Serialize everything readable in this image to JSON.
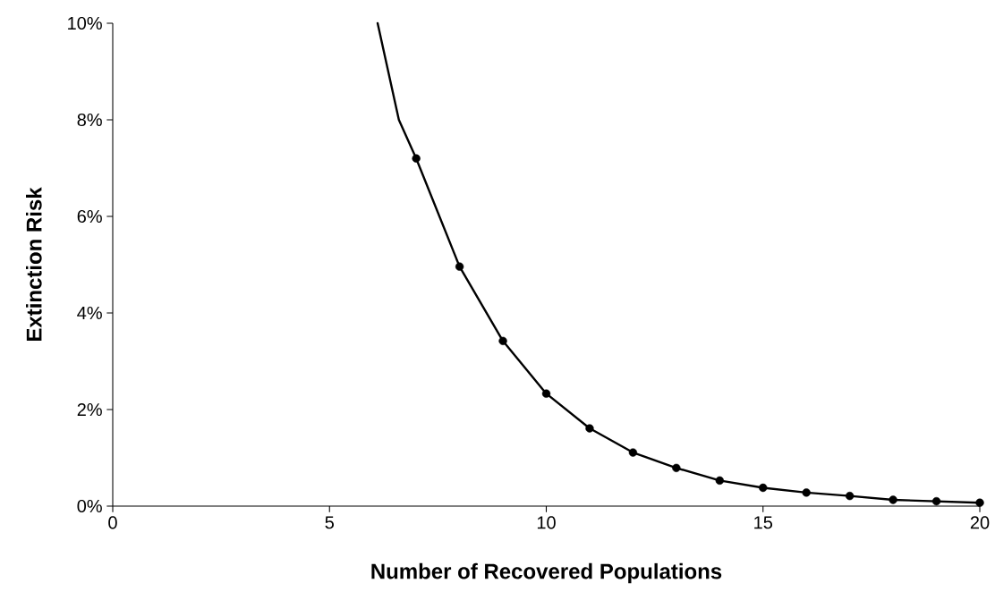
{
  "chart_data": {
    "type": "line",
    "xlabel": "Number of Recovered Populations",
    "ylabel": "Extinction Risk",
    "xlim": [
      0,
      20
    ],
    "xticks": [
      0,
      5,
      10,
      15,
      20
    ],
    "ylim": [
      0,
      10
    ],
    "yticks": [
      {
        "value": 0,
        "label": "0%"
      },
      {
        "value": 2,
        "label": "2%"
      },
      {
        "value": 4,
        "label": "4%"
      },
      {
        "value": 6,
        "label": "6%"
      },
      {
        "value": 8,
        "label": "8%"
      },
      {
        "value": 10,
        "label": "10%"
      }
    ],
    "series": [
      {
        "type": "line",
        "marker": "none",
        "line_style": "solid",
        "color": "#000000",
        "x": [
          6.11,
          6.6,
          7,
          8,
          9,
          10,
          11,
          12,
          13,
          14,
          15,
          16,
          17,
          18,
          19,
          20
        ],
        "values": [
          10,
          8,
          7.2,
          4.96,
          3.42,
          2.33,
          1.61,
          1.11,
          0.79,
          0.53,
          0.38,
          0.28,
          0.21,
          0.13,
          0.1,
          0.07
        ]
      },
      {
        "type": "scatter",
        "marker": "circle",
        "color": "#000000",
        "x": [
          7,
          8,
          9,
          10,
          11,
          12,
          13,
          14,
          15,
          16,
          17,
          18,
          19,
          20
        ],
        "values": [
          7.2,
          4.96,
          3.42,
          2.33,
          1.61,
          1.11,
          0.79,
          0.53,
          0.38,
          0.28,
          0.21,
          0.13,
          0.1,
          0.07
        ]
      }
    ]
  }
}
